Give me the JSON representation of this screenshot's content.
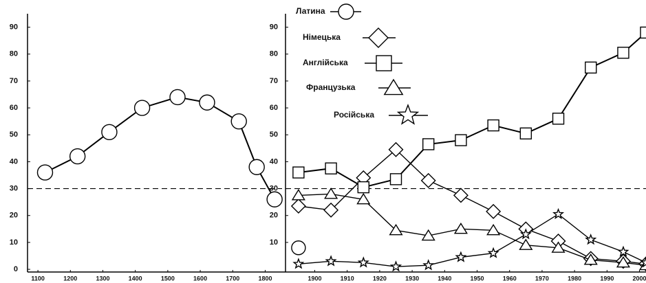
{
  "chart_data": [
    {
      "type": "line",
      "x": [
        1122,
        1222,
        1320,
        1421,
        1530,
        1621,
        1719,
        1774,
        1829
      ],
      "series": [
        {
          "color": "#000000",
          "marker": "circle",
          "values": [
            36,
            42,
            51,
            60,
            64,
            62,
            55,
            38,
            26
          ]
        }
      ],
      "xlim": [
        1068,
        1852
      ],
      "xticks": [
        1100,
        1200,
        1300,
        1400,
        1500,
        1600,
        1700,
        1800
      ],
      "ylim": [
        -1,
        95
      ],
      "yticks": [
        0,
        10,
        20,
        30,
        40,
        50,
        60,
        70,
        80,
        90
      ],
      "reference_line": 30
    },
    {
      "type": "line",
      "x": [
        1895,
        1905,
        1915,
        1925,
        1935,
        1945,
        1955,
        1965,
        1975,
        1985,
        1995,
        2002
      ],
      "series": [
        {
          "name": "Латина",
          "color": "#000000",
          "marker": "circle",
          "values": [
            8,
            null,
            null,
            null,
            null,
            null,
            null,
            null,
            null,
            null,
            null,
            null
          ]
        },
        {
          "name": "Німецька",
          "color": "#000000",
          "marker": "diamond",
          "values": [
            23.5,
            22,
            34,
            44.5,
            33,
            27.5,
            21.5,
            15,
            10.5,
            4,
            3,
            2
          ]
        },
        {
          "name": "Англійська",
          "color": "#000000",
          "marker": "square",
          "values": [
            36,
            37.5,
            30.5,
            33.5,
            46.5,
            48,
            53.5,
            50.5,
            56,
            75,
            80.5,
            88
          ]
        },
        {
          "name": "Французька",
          "color": "#000000",
          "marker": "triangle",
          "values": [
            27.5,
            28,
            26,
            14.5,
            12.5,
            15,
            14.5,
            9,
            8,
            3.5,
            2.5,
            1.5
          ]
        },
        {
          "name": "Російська",
          "color": "#000000",
          "marker": "star",
          "values": [
            2,
            3,
            2.5,
            1,
            1.5,
            4.5,
            6,
            13,
            20.5,
            11,
            6.5,
            2.5
          ]
        }
      ],
      "xlim": [
        1891,
        2002
      ],
      "xticks": [
        1900,
        1910,
        1920,
        1930,
        1940,
        1950,
        1960,
        1970,
        1980,
        1990,
        2000
      ],
      "ylim": [
        -1,
        95
      ],
      "yticks": [
        10,
        20,
        30,
        40,
        50,
        60,
        70,
        80,
        90
      ],
      "reference_line": 30
    }
  ]
}
